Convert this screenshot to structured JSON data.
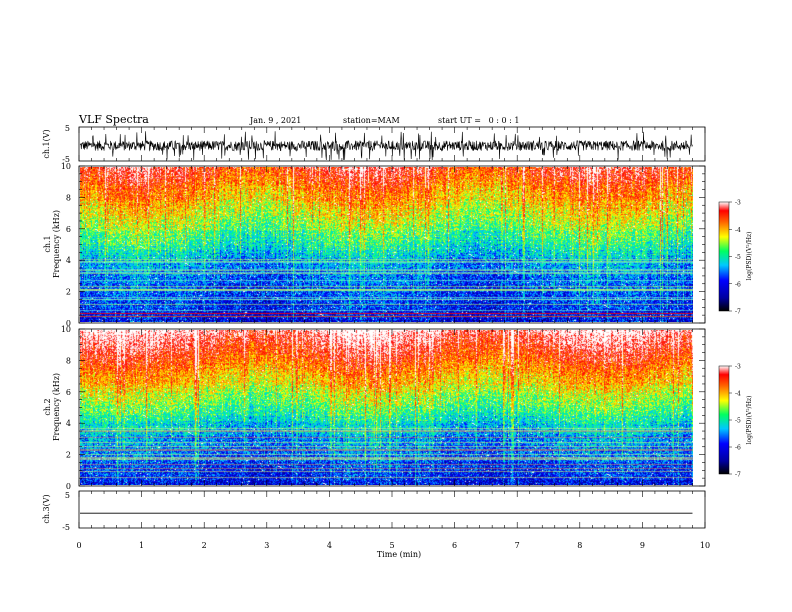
{
  "header": {
    "title": "VLF Spectra",
    "date": "Jan. 9 , 2021",
    "station": "station=MAM",
    "start": "start UT =   0 : 0 : 1"
  },
  "chart_data": {
    "type": "heatmap",
    "x_axis": {
      "label": "Time (min)",
      "range": [
        0,
        10
      ],
      "ticks": [
        "0",
        "1",
        "2",
        "3",
        "4",
        "5",
        "6",
        "7",
        "8",
        "9",
        "10"
      ],
      "data_end": 9.8
    },
    "panels": [
      {
        "id": "ch1_waveform",
        "type": "line",
        "ylabel": "ch.1(V)",
        "yticks": [
          "5",
          "-5"
        ],
        "ylim": [
          -5,
          5
        ],
        "signal_center": -0.5,
        "signal_amplitude": 1.5
      },
      {
        "id": "ch1_spectrogram",
        "type": "heatmap",
        "ylabel_lines": [
          "ch.1",
          "Frequency (kHz)"
        ],
        "yticks": [
          "0",
          "2",
          "4",
          "6",
          "8",
          "10"
        ],
        "ylim": [
          0,
          10
        ]
      },
      {
        "id": "ch2_spectrogram",
        "type": "heatmap",
        "ylabel_lines": [
          "ch.2",
          "Frequency (kHz)"
        ],
        "yticks": [
          "0",
          "2",
          "4",
          "6",
          "8",
          "10"
        ],
        "ylim": [
          0,
          10
        ]
      },
      {
        "id": "ch3_waveform",
        "type": "line",
        "ylabel": "ch.3(V)",
        "yticks": [
          "5",
          "-5"
        ],
        "ylim": [
          -5,
          5
        ],
        "signal_center": -1.0,
        "signal_amplitude": 0
      }
    ],
    "colorbars": [
      {
        "label": "log(PSD)(V²/Hz)",
        "ticks": [
          "-3",
          "-4",
          "-5",
          "-6",
          "-7"
        ],
        "range": [
          -7,
          -3
        ]
      },
      {
        "label": "log(PSD)(V²/Hz)",
        "ticks": [
          "-3",
          "-4",
          "-5",
          "-6",
          "-7"
        ],
        "range": [
          -7,
          -3
        ]
      }
    ],
    "colormap": [
      "#00008b",
      "#0000ff",
      "#00c8ff",
      "#00ff80",
      "#ffff00",
      "#ff8000",
      "#ff0000",
      "#ffffff"
    ],
    "grid": false
  }
}
